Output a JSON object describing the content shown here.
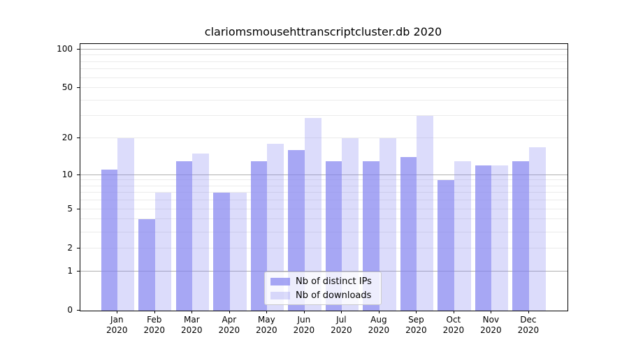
{
  "chart_data": {
    "type": "bar",
    "title": "clariomsmousehttranscriptcluster.db 2020",
    "categories": [
      "Jan",
      "Feb",
      "Mar",
      "Apr",
      "May",
      "Jun",
      "Jul",
      "Aug",
      "Sep",
      "Oct",
      "Nov",
      "Dec"
    ],
    "x_year_label": "2020",
    "series": [
      {
        "name": "Nb of distinct IPs",
        "color_hex": "#a8a8f2",
        "values": [
          11,
          4,
          13,
          7,
          13,
          16,
          13,
          13,
          14,
          9,
          12,
          13
        ]
      },
      {
        "name": "Nb of downloads",
        "color_hex": "#dcdcf9",
        "values": [
          20,
          7,
          15,
          7,
          18,
          29,
          20,
          20,
          30,
          13,
          12,
          17
        ]
      }
    ],
    "yscale": "log10(1+x)",
    "y_ticks": [
      0,
      1,
      2,
      5,
      10,
      20,
      50,
      100
    ],
    "ylim": [
      0,
      110
    ],
    "grid_major": [
      1,
      10,
      100
    ],
    "grid_minor": [
      2,
      3,
      4,
      5,
      6,
      7,
      8,
      9,
      20,
      30,
      40,
      50,
      60,
      70,
      80,
      90
    ],
    "legend_position": "lower center",
    "grid": "on"
  },
  "colors": {
    "bar_ips": "rgba(130,130,240,0.7)",
    "bar_downloads": "rgba(130,130,240,0.28)",
    "grid_major": "#b0b0b0",
    "grid_minor": "#ebebeb",
    "spine": "#000000",
    "text": "#000000",
    "legend_border": "#cccccc",
    "legend_bg": "rgba(255,255,255,0.8)"
  }
}
